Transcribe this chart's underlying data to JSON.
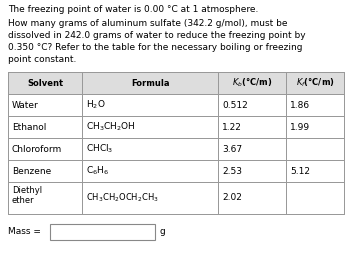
{
  "title_line1": "The freezing point of water is 0.00 °C at 1 atmosphere.",
  "q_line1": "How many grams of aluminum sulfate (342.2 g/mol), must be",
  "q_line2": "dissolved in 242.0 grams of water to reduce the freezing point by",
  "q_line3": "0.350 °C? Refer to the table for the necessary boiling or freezing",
  "q_line4": "point constant.",
  "header_cols": [
    "Solvent",
    "Formula",
    "$K_b$(°C/m)",
    "$K_f$(°C/m)"
  ],
  "rows": [
    [
      "Water",
      "H$_2$O",
      "0.512",
      "1.86"
    ],
    [
      "Ethanol",
      "CH$_3$CH$_2$OH",
      "1.22",
      "1.99"
    ],
    [
      "Chloroform",
      "CHCl$_3$",
      "3.67",
      ""
    ],
    [
      "Benzene",
      "C$_6$H$_6$",
      "2.53",
      "5.12"
    ],
    [
      "Diethyl\nether",
      "CH$_3$CH$_2$OCH$_2$CH$_3$",
      "2.02",
      ""
    ]
  ],
  "mass_label": "Mass =",
  "mass_unit": "g",
  "bg_color": "#ffffff",
  "text_color": "#000000",
  "border_color": "#999999",
  "header_bg": "#dddddd"
}
